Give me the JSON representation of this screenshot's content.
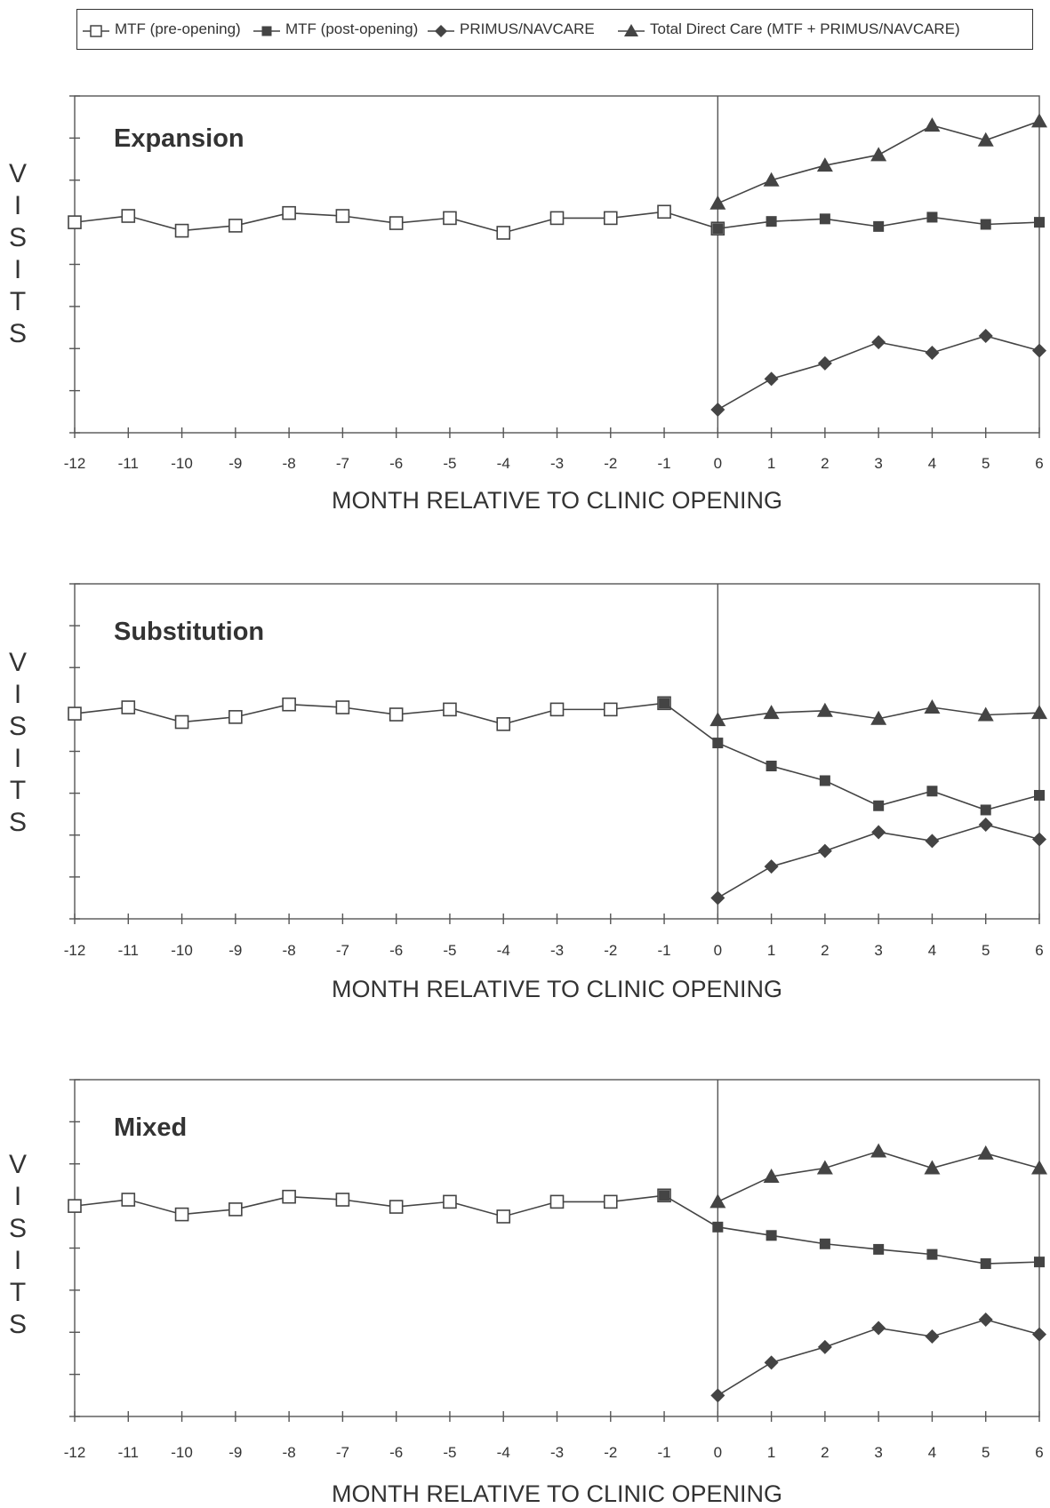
{
  "legend": [
    {
      "label": "MTF (pre-opening)",
      "marker": "open-square",
      "color": "#444444"
    },
    {
      "label": "MTF (post-opening)",
      "marker": "filled-square",
      "color": "#444444"
    },
    {
      "label": "PRIMUS/NAVCARE",
      "marker": "filled-diamond",
      "color": "#444444"
    },
    {
      "label": "Total Direct Care (MTF + PRIMUS/NAVCARE)",
      "marker": "filled-triangle",
      "color": "#444444"
    }
  ],
  "chart_data": [
    {
      "type": "line",
      "title": "Expansion",
      "xlabel": "MONTH RELATIVE TO CLINIC OPENING",
      "ylabel": "VISITS",
      "xlim": [
        -12,
        6
      ],
      "ylim": [
        0,
        8
      ],
      "x_ticks": [
        -12,
        -11,
        -10,
        -9,
        -8,
        -7,
        -6,
        -5,
        -4,
        -3,
        -2,
        -1,
        0,
        1,
        2,
        3,
        4,
        5,
        6
      ],
      "vertical_line_x": 0,
      "grid": false,
      "series": [
        {
          "name": "MTF (pre-opening)",
          "marker": "open-square",
          "x": [
            -12,
            -11,
            -10,
            -9,
            -8,
            -7,
            -6,
            -5,
            -4,
            -3,
            -2,
            -1,
            0
          ],
          "y": [
            5.0,
            5.15,
            4.8,
            4.92,
            5.22,
            5.15,
            4.98,
            5.1,
            4.75,
            5.1,
            5.1,
            5.25,
            4.85
          ]
        },
        {
          "name": "MTF (post-opening)",
          "marker": "filled-square",
          "x": [
            0,
            1,
            2,
            3,
            4,
            5,
            6
          ],
          "y": [
            4.85,
            5.02,
            5.08,
            4.9,
            5.12,
            4.95,
            5.0
          ]
        },
        {
          "name": "PRIMUS/NAVCARE",
          "marker": "filled-diamond",
          "x": [
            0,
            1,
            2,
            3,
            4,
            5,
            6
          ],
          "y": [
            0.55,
            1.28,
            1.65,
            2.15,
            1.9,
            2.3,
            1.95
          ]
        },
        {
          "name": "Total Direct Care (MTF + PRIMUS/NAVCARE)",
          "marker": "filled-triangle",
          "x": [
            0,
            1,
            2,
            3,
            4,
            5,
            6
          ],
          "y": [
            5.45,
            6.0,
            6.35,
            6.6,
            7.3,
            6.95,
            7.4
          ]
        }
      ]
    },
    {
      "type": "line",
      "title": "Substitution",
      "xlabel": "MONTH RELATIVE TO CLINIC OPENING",
      "ylabel": "VISITS",
      "xlim": [
        -12,
        6
      ],
      "ylim": [
        0,
        8
      ],
      "x_ticks": [
        -12,
        -11,
        -10,
        -9,
        -8,
        -7,
        -6,
        -5,
        -4,
        -3,
        -2,
        -1,
        0,
        1,
        2,
        3,
        4,
        5,
        6
      ],
      "vertical_line_x": 0,
      "grid": false,
      "series": [
        {
          "name": "MTF (pre-opening)",
          "marker": "open-square",
          "x": [
            -12,
            -11,
            -10,
            -9,
            -8,
            -7,
            -6,
            -5,
            -4,
            -3,
            -2,
            -1
          ],
          "y": [
            4.9,
            5.05,
            4.7,
            4.82,
            5.12,
            5.05,
            4.88,
            5.0,
            4.65,
            5.0,
            5.0,
            5.15
          ]
        },
        {
          "name": "MTF (post-opening)",
          "marker": "filled-square",
          "x": [
            -1,
            0,
            1,
            2,
            3,
            4,
            5,
            6
          ],
          "y": [
            5.15,
            4.2,
            3.65,
            3.3,
            2.7,
            3.05,
            2.6,
            2.95
          ]
        },
        {
          "name": "PRIMUS/NAVCARE",
          "marker": "filled-diamond",
          "x": [
            0,
            1,
            2,
            3,
            4,
            5,
            6
          ],
          "y": [
            0.5,
            1.25,
            1.62,
            2.07,
            1.86,
            2.25,
            1.9
          ]
        },
        {
          "name": "Total Direct Care (MTF + PRIMUS/NAVCARE)",
          "marker": "filled-triangle",
          "x": [
            0,
            1,
            2,
            3,
            4,
            5,
            6
          ],
          "y": [
            4.75,
            4.92,
            4.97,
            4.78,
            5.05,
            4.87,
            4.92
          ]
        }
      ]
    },
    {
      "type": "line",
      "title": "Mixed",
      "xlabel": "MONTH RELATIVE TO CLINIC OPENING",
      "ylabel": "VISITS",
      "xlim": [
        -12,
        6
      ],
      "ylim": [
        0,
        8
      ],
      "x_ticks": [
        -12,
        -11,
        -10,
        -9,
        -8,
        -7,
        -6,
        -5,
        -4,
        -3,
        -2,
        -1,
        0,
        1,
        2,
        3,
        4,
        5,
        6
      ],
      "vertical_line_x": 0,
      "grid": false,
      "series": [
        {
          "name": "MTF (pre-opening)",
          "marker": "open-square",
          "x": [
            -12,
            -11,
            -10,
            -9,
            -8,
            -7,
            -6,
            -5,
            -4,
            -3,
            -2,
            -1
          ],
          "y": [
            5.0,
            5.15,
            4.8,
            4.92,
            5.22,
            5.15,
            4.98,
            5.1,
            4.75,
            5.1,
            5.1,
            5.25
          ]
        },
        {
          "name": "MTF (post-opening)",
          "marker": "filled-square",
          "x": [
            -1,
            0,
            1,
            2,
            3,
            4,
            5,
            6
          ],
          "y": [
            5.25,
            4.5,
            4.3,
            4.1,
            3.97,
            3.85,
            3.63,
            3.67
          ]
        },
        {
          "name": "PRIMUS/NAVCARE",
          "marker": "filled-diamond",
          "x": [
            0,
            1,
            2,
            3,
            4,
            5,
            6
          ],
          "y": [
            0.5,
            1.28,
            1.65,
            2.1,
            1.9,
            2.3,
            1.95
          ]
        },
        {
          "name": "Total Direct Care (MTF + PRIMUS/NAVCARE)",
          "marker": "filled-triangle",
          "x": [
            0,
            1,
            2,
            3,
            4,
            5,
            6
          ],
          "y": [
            5.1,
            5.7,
            5.9,
            6.3,
            5.9,
            6.25,
            5.9
          ]
        }
      ]
    }
  ]
}
